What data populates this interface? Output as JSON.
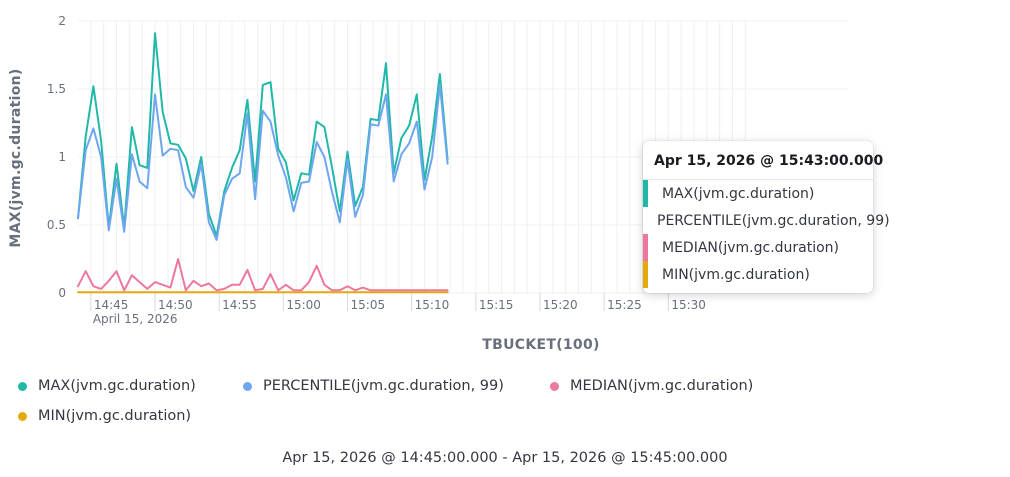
{
  "chart_data": {
    "type": "line",
    "xlabel": "TBUCKET(100)",
    "ylabel": "MAX(jvm.gc.duration)",
    "ylim": [
      0,
      2
    ],
    "y_ticks": [
      "0",
      "0.5",
      "1",
      "1.5",
      "2"
    ],
    "x_tick_labels": [
      "14:45",
      "14:50",
      "14:55",
      "15:00",
      "15:05",
      "15:10",
      "15:15",
      "15:20",
      "15:25",
      "15:30"
    ],
    "x_date_label": "April 15, 2026",
    "grid": true,
    "legend_position": "bottom",
    "x_start": "14:44:00",
    "x_step_seconds": 36,
    "series": [
      {
        "name": "MAX(jvm.gc.duration)",
        "color": "#20b8a8",
        "values": [
          0.55,
          1.15,
          1.52,
          1.12,
          0.48,
          0.95,
          0.48,
          1.22,
          0.94,
          0.92,
          1.91,
          1.33,
          1.1,
          1.09,
          0.99,
          0.75,
          1.0,
          0.58,
          0.42,
          0.75,
          0.92,
          1.05,
          1.42,
          0.82,
          1.53,
          1.55,
          1.06,
          0.96,
          0.68,
          0.88,
          0.87,
          1.26,
          1.22,
          0.92,
          0.6,
          1.04,
          0.64,
          0.78,
          1.28,
          1.27,
          1.69,
          0.88,
          1.14,
          1.23,
          1.46,
          0.83,
          1.15,
          1.61,
          0.98
        ]
      },
      {
        "name": "PERCENTILE(jvm.gc.duration, 99)",
        "color": "#6ea6f0",
        "values": [
          0.55,
          1.05,
          1.21,
          1.0,
          0.46,
          0.84,
          0.45,
          1.02,
          0.82,
          0.77,
          1.46,
          1.01,
          1.06,
          1.05,
          0.78,
          0.7,
          0.95,
          0.52,
          0.39,
          0.72,
          0.84,
          0.88,
          1.32,
          0.69,
          1.34,
          1.26,
          1.01,
          0.85,
          0.6,
          0.81,
          0.82,
          1.11,
          1.0,
          0.74,
          0.52,
          0.98,
          0.56,
          0.72,
          1.24,
          1.23,
          1.46,
          0.82,
          1.02,
          1.1,
          1.26,
          0.76,
          1.0,
          1.53,
          0.95
        ]
      },
      {
        "name": "MEDIAN(jvm.gc.duration)",
        "color": "#ee789d",
        "values": [
          0.05,
          0.16,
          0.05,
          0.03,
          0.09,
          0.16,
          0.02,
          0.13,
          0.08,
          0.03,
          0.08,
          0.06,
          0.04,
          0.25,
          0.02,
          0.09,
          0.05,
          0.07,
          0.02,
          0.03,
          0.06,
          0.06,
          0.17,
          0.02,
          0.03,
          0.14,
          0.02,
          0.06,
          0.02,
          0.02,
          0.08,
          0.2,
          0.06,
          0.02,
          0.02,
          0.05,
          0.02,
          0.04,
          0.02,
          0.02,
          0.02,
          0.02,
          0.02,
          0.02,
          0.02,
          0.02,
          0.02,
          0.02,
          0.02
        ]
      },
      {
        "name": "MIN(jvm.gc.duration)",
        "color": "#e4a90b",
        "values": [
          0.005,
          0.005,
          0.005,
          0.005,
          0.005,
          0.005,
          0.005,
          0.005,
          0.005,
          0.005,
          0.005,
          0.005,
          0.005,
          0.005,
          0.005,
          0.005,
          0.005,
          0.005,
          0.005,
          0.005,
          0.005,
          0.005,
          0.005,
          0.005,
          0.005,
          0.005,
          0.005,
          0.005,
          0.005,
          0.005,
          0.005,
          0.005,
          0.005,
          0.005,
          0.005,
          0.005,
          0.005,
          0.005,
          0.005,
          0.005,
          0.005,
          0.005,
          0.005,
          0.005,
          0.005,
          0.005,
          0.005,
          0.005,
          0.005
        ]
      }
    ]
  },
  "legend": {
    "items": [
      {
        "label": "MAX(jvm.gc.duration)",
        "color": "#20b8a8"
      },
      {
        "label": "PERCENTILE(jvm.gc.duration, 99)",
        "color": "#6ea6f0"
      },
      {
        "label": "MEDIAN(jvm.gc.duration)",
        "color": "#ee789d"
      },
      {
        "label": "MIN(jvm.gc.duration)",
        "color": "#e4a90b"
      }
    ]
  },
  "time_range": "Apr 15, 2026 @ 14:45:00.000 - Apr 15, 2026 @ 15:45:00.000",
  "tooltip": {
    "title": "Apr 15, 2026 @ 15:43:00.000",
    "rows": [
      {
        "label": "MAX(jvm.gc.duration)",
        "color": "#20b8a8"
      },
      {
        "label": "PERCENTILE(jvm.gc.duration, 99)",
        "color": "#6ea6f0"
      },
      {
        "label": "MEDIAN(jvm.gc.duration)",
        "color": "#ee789d"
      },
      {
        "label": "MIN(jvm.gc.duration)",
        "color": "#e4a90b"
      }
    ]
  }
}
